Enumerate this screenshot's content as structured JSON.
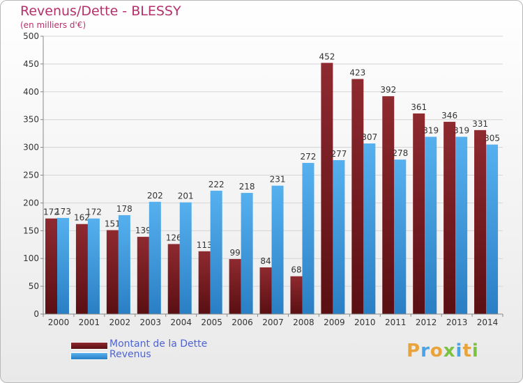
{
  "header": {
    "title": "Revenus/Dette - BLESSY",
    "subtitle": "(en milliers d'€)"
  },
  "legend": {
    "items": [
      {
        "label": "Montant de la Dette",
        "color": "#7a1f24"
      },
      {
        "label": "Revenus",
        "color": "#4aa3e6"
      }
    ]
  },
  "logo": {
    "letters": [
      {
        "ch": "P",
        "color": "#e8a43a"
      },
      {
        "ch": "r",
        "color": "#4aa3e6"
      },
      {
        "ch": "o",
        "color": "#e8a43a"
      },
      {
        "ch": "x",
        "color": "#7cc241"
      },
      {
        "ch": "i",
        "color": "#4aa3e6"
      },
      {
        "ch": "t",
        "color": "#e8a43a"
      },
      {
        "ch": "i",
        "color": "#7cc241"
      }
    ]
  },
  "chart_data": {
    "type": "bar",
    "title": "Revenus/Dette - BLESSY",
    "subtitle": "(en milliers d'€)",
    "categories": [
      "2000",
      "2001",
      "2002",
      "2003",
      "2004",
      "2005",
      "2006",
      "2007",
      "2008",
      "2009",
      "2010",
      "2011",
      "2012",
      "2013",
      "2014"
    ],
    "series": [
      {
        "name": "Montant de la Dette",
        "color": "#7a1f24",
        "values": [
          172,
          162,
          151,
          139,
          126,
          113,
          99,
          84,
          68,
          452,
          423,
          392,
          361,
          346,
          331
        ]
      },
      {
        "name": "Revenus",
        "color": "#4aa3e6",
        "values": [
          173,
          172,
          178,
          202,
          201,
          222,
          218,
          231,
          272,
          277,
          307,
          278,
          319,
          319,
          305
        ]
      }
    ],
    "ylim": [
      0,
      500
    ],
    "yticks": [
      0,
      50,
      100,
      150,
      200,
      250,
      300,
      350,
      400,
      450,
      500
    ],
    "grid": true,
    "legend_position": "bottom-left"
  }
}
